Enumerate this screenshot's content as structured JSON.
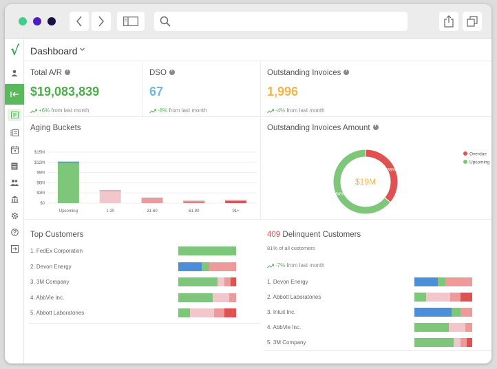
{
  "colors": {
    "green": "#7dc67a",
    "blue": "#4a8fd8",
    "pink": "#f2c7cb",
    "rose": "#ef9a9a",
    "red": "#e05252",
    "teal_value": "#6fb8e0",
    "orange_value": "#f3b54a",
    "green_value": "#4cae4c"
  },
  "titlebar": {
    "traffic_lights": [
      "#3ecf8e",
      "#4b1fc4",
      "#1a1046"
    ],
    "search_placeholder": ""
  },
  "header": {
    "title": "Dashboard"
  },
  "kpis": [
    {
      "title": "Total A/R",
      "value": "$19,083,839",
      "trend_pct": "+6%",
      "trend_text": "from last month"
    },
    {
      "title": "DSO",
      "value": "67",
      "trend_pct": "-8%",
      "trend_text": "from last month"
    },
    {
      "title": "Outstanding Invoices",
      "value": "1,996",
      "trend_pct": "-4%",
      "trend_text": "from last month"
    }
  ],
  "chart_data": [
    {
      "type": "bar",
      "title": "Aging Buckets",
      "categories": [
        "Upcoming",
        "1-30",
        "31-60",
        "61-90",
        "91+"
      ],
      "values": [
        12.2,
        3.8,
        1.6,
        0.7,
        0.9
      ],
      "y_ticks": [
        "$15M",
        "$12M",
        "$9M",
        "$6M",
        "$3M",
        "$0"
      ],
      "ylim": [
        0,
        15
      ],
      "colors": [
        "#7dc67a",
        "#f2c7cb",
        "#ef9a9a",
        "#ec7a7a",
        "#e05252"
      ]
    },
    {
      "type": "pie",
      "title": "Outstanding Invoices Amount",
      "center_label": "$19M",
      "labels": [
        "Overdue",
        "Upcoming"
      ],
      "values": [
        36,
        64
      ],
      "slice_labels": [
        "36%",
        "64%"
      ],
      "colors": [
        "#e05252",
        "#7dc67a"
      ]
    }
  ],
  "top_customers": {
    "title": "Top Customers",
    "rows": [
      {
        "label": "1. FedEx Corporation",
        "segments": [
          {
            "w": 100,
            "c": "#7dc67a"
          }
        ]
      },
      {
        "label": "2. Devon Energy",
        "segments": [
          {
            "w": 40,
            "c": "#4a8fd8"
          },
          {
            "w": 14,
            "c": "#7dc67a"
          },
          {
            "w": 46,
            "c": "#ef9a9a"
          }
        ]
      },
      {
        "label": "3. 3M Company",
        "segments": [
          {
            "w": 68,
            "c": "#7dc67a"
          },
          {
            "w": 12,
            "c": "#f2c7cb"
          },
          {
            "w": 10,
            "c": "#ef9a9a"
          },
          {
            "w": 10,
            "c": "#e05252"
          }
        ]
      },
      {
        "label": "4. AbbVie Inc.",
        "segments": [
          {
            "w": 60,
            "c": "#7dc67a"
          },
          {
            "w": 28,
            "c": "#f2c7cb"
          },
          {
            "w": 12,
            "c": "#ef9a9a"
          }
        ]
      },
      {
        "label": "5. Abbott Laboratories",
        "segments": [
          {
            "w": 20,
            "c": "#7dc67a"
          },
          {
            "w": 42,
            "c": "#f2c7cb"
          },
          {
            "w": 18,
            "c": "#ef9a9a"
          },
          {
            "w": 20,
            "c": "#e05252"
          }
        ]
      }
    ]
  },
  "delinquent": {
    "count": "409",
    "title": "Delinquent Customers",
    "subtitle": "81% of all customers",
    "trend_pct": "-7%",
    "trend_text": "from last month",
    "rows": [
      {
        "label": "1. Devon Energy",
        "segments": [
          {
            "w": 40,
            "c": "#4a8fd8"
          },
          {
            "w": 14,
            "c": "#7dc67a"
          },
          {
            "w": 46,
            "c": "#ef9a9a"
          }
        ]
      },
      {
        "label": "2. Abbott Laboratories",
        "segments": [
          {
            "w": 20,
            "c": "#7dc67a"
          },
          {
            "w": 42,
            "c": "#f2c7cb"
          },
          {
            "w": 18,
            "c": "#ef9a9a"
          },
          {
            "w": 20,
            "c": "#e05252"
          }
        ]
      },
      {
        "label": "3. Intuit Inc.",
        "segments": [
          {
            "w": 64,
            "c": "#4a8fd8"
          },
          {
            "w": 16,
            "c": "#7dc67a"
          },
          {
            "w": 20,
            "c": "#ef9a9a"
          }
        ]
      },
      {
        "label": "4. AbbVie Inc.",
        "segments": [
          {
            "w": 60,
            "c": "#7dc67a"
          },
          {
            "w": 28,
            "c": "#f2c7cb"
          },
          {
            "w": 12,
            "c": "#ef9a9a"
          }
        ]
      },
      {
        "label": "5. 3M Company",
        "segments": [
          {
            "w": 68,
            "c": "#7dc67a"
          },
          {
            "w": 12,
            "c": "#f2c7cb"
          },
          {
            "w": 10,
            "c": "#ef9a9a"
          },
          {
            "w": 10,
            "c": "#e05252"
          }
        ]
      }
    ]
  }
}
